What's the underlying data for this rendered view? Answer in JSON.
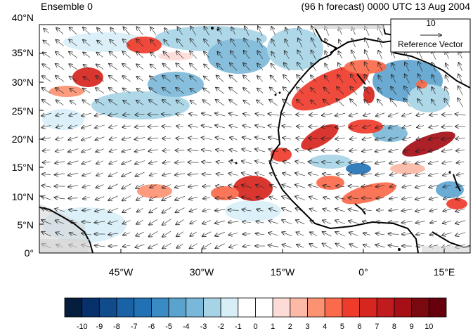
{
  "figure": {
    "title_left": "Ensemble 0",
    "title_right": "(96 h forecast) 0000 UTC 13 Aug 2004"
  },
  "map": {
    "lon_range": [
      -62,
      18
    ],
    "lat_range": [
      0,
      40
    ],
    "lat_labels": [
      "40°N",
      "35°N",
      "30°N",
      "25°N",
      "20°N",
      "15°N",
      "10°N",
      "5°N",
      "0°"
    ],
    "lon_labels": [
      "45°W",
      "30°W",
      "15°W",
      "0°",
      "15°E"
    ],
    "land_color": "#d3d3d3",
    "coastline_color": "#000000"
  },
  "reference_vector": {
    "magnitude_label": "10",
    "label": "Reference Vector"
  },
  "colorbar": {
    "tick_labels": [
      "-10",
      "-9",
      "-8",
      "-7",
      "-6",
      "-5",
      "-4",
      "-3",
      "-2",
      "-1",
      "0",
      "1",
      "2",
      "3",
      "4",
      "5",
      "6",
      "7",
      "8",
      "9",
      "10"
    ],
    "colors": [
      "#051e3e",
      "#08306b",
      "#104b8c",
      "#1a62a6",
      "#2171b5",
      "#3a8ac3",
      "#5ba3cf",
      "#7ab8d9",
      "#a6d3e6",
      "#d7eef7",
      "#ffffff",
      "#ffffff",
      "#fddbd6",
      "#fcb9a6",
      "#fc9272",
      "#fb6a4a",
      "#ef3b2c",
      "#d7261f",
      "#c01b1d",
      "#a50f15",
      "#7a0a10",
      "#67000d"
    ]
  }
}
